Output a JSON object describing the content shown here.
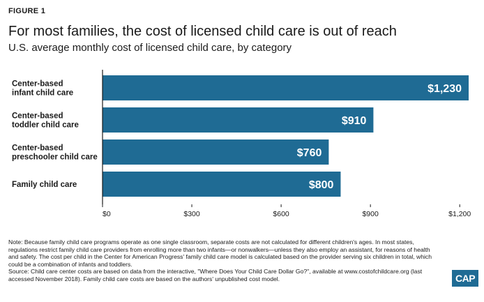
{
  "figure_label": "FIGURE 1",
  "title": "For most families, the cost of licensed child care is out of reach",
  "subtitle": "U.S. average monthly cost of licensed child care, by category",
  "notes": {
    "note": "Note: Because family child care programs operate as one single classroom, separate costs are not calculated for different children's ages. In most states, regulations restrict family child care providers from enrolling more than two infants—or nonwalkers—unless they also employ an assistant, for reasons of health and safety. The cost per child in the Center for American Progress' family child care model is calculated based on the provider serving six children in total, which could be a combination of infants and toddlers.",
    "source": "Source: Child care center costs are based on data from the interactive, \"Where Does Your Child Care Dollar Go?\", available at www.costofchildcare.org (last accessed November 2018). Family child care costs are based on the authors' unpublished cost model."
  },
  "logo_text": "CAP",
  "colors": {
    "bar": "#1f6b94",
    "bar_label": "#ffffff",
    "text": "#1a1a1a"
  },
  "chart_data": {
    "type": "bar",
    "orientation": "horizontal",
    "categories": [
      [
        "Center-based",
        "infant child care"
      ],
      [
        "Center-based",
        "toddler child care"
      ],
      [
        "Center-based",
        "preschooler child care"
      ],
      [
        "Family child care"
      ]
    ],
    "values": [
      1230,
      910,
      760,
      800
    ],
    "value_labels": [
      "$1,230",
      "$910",
      "$760",
      "$800"
    ],
    "xticks": [
      0,
      300,
      600,
      900,
      1200
    ],
    "xtick_labels": [
      "$0",
      "$300",
      "$600",
      "$900",
      "$1,200"
    ],
    "xlim": [
      0,
      1230
    ],
    "grid": false
  }
}
